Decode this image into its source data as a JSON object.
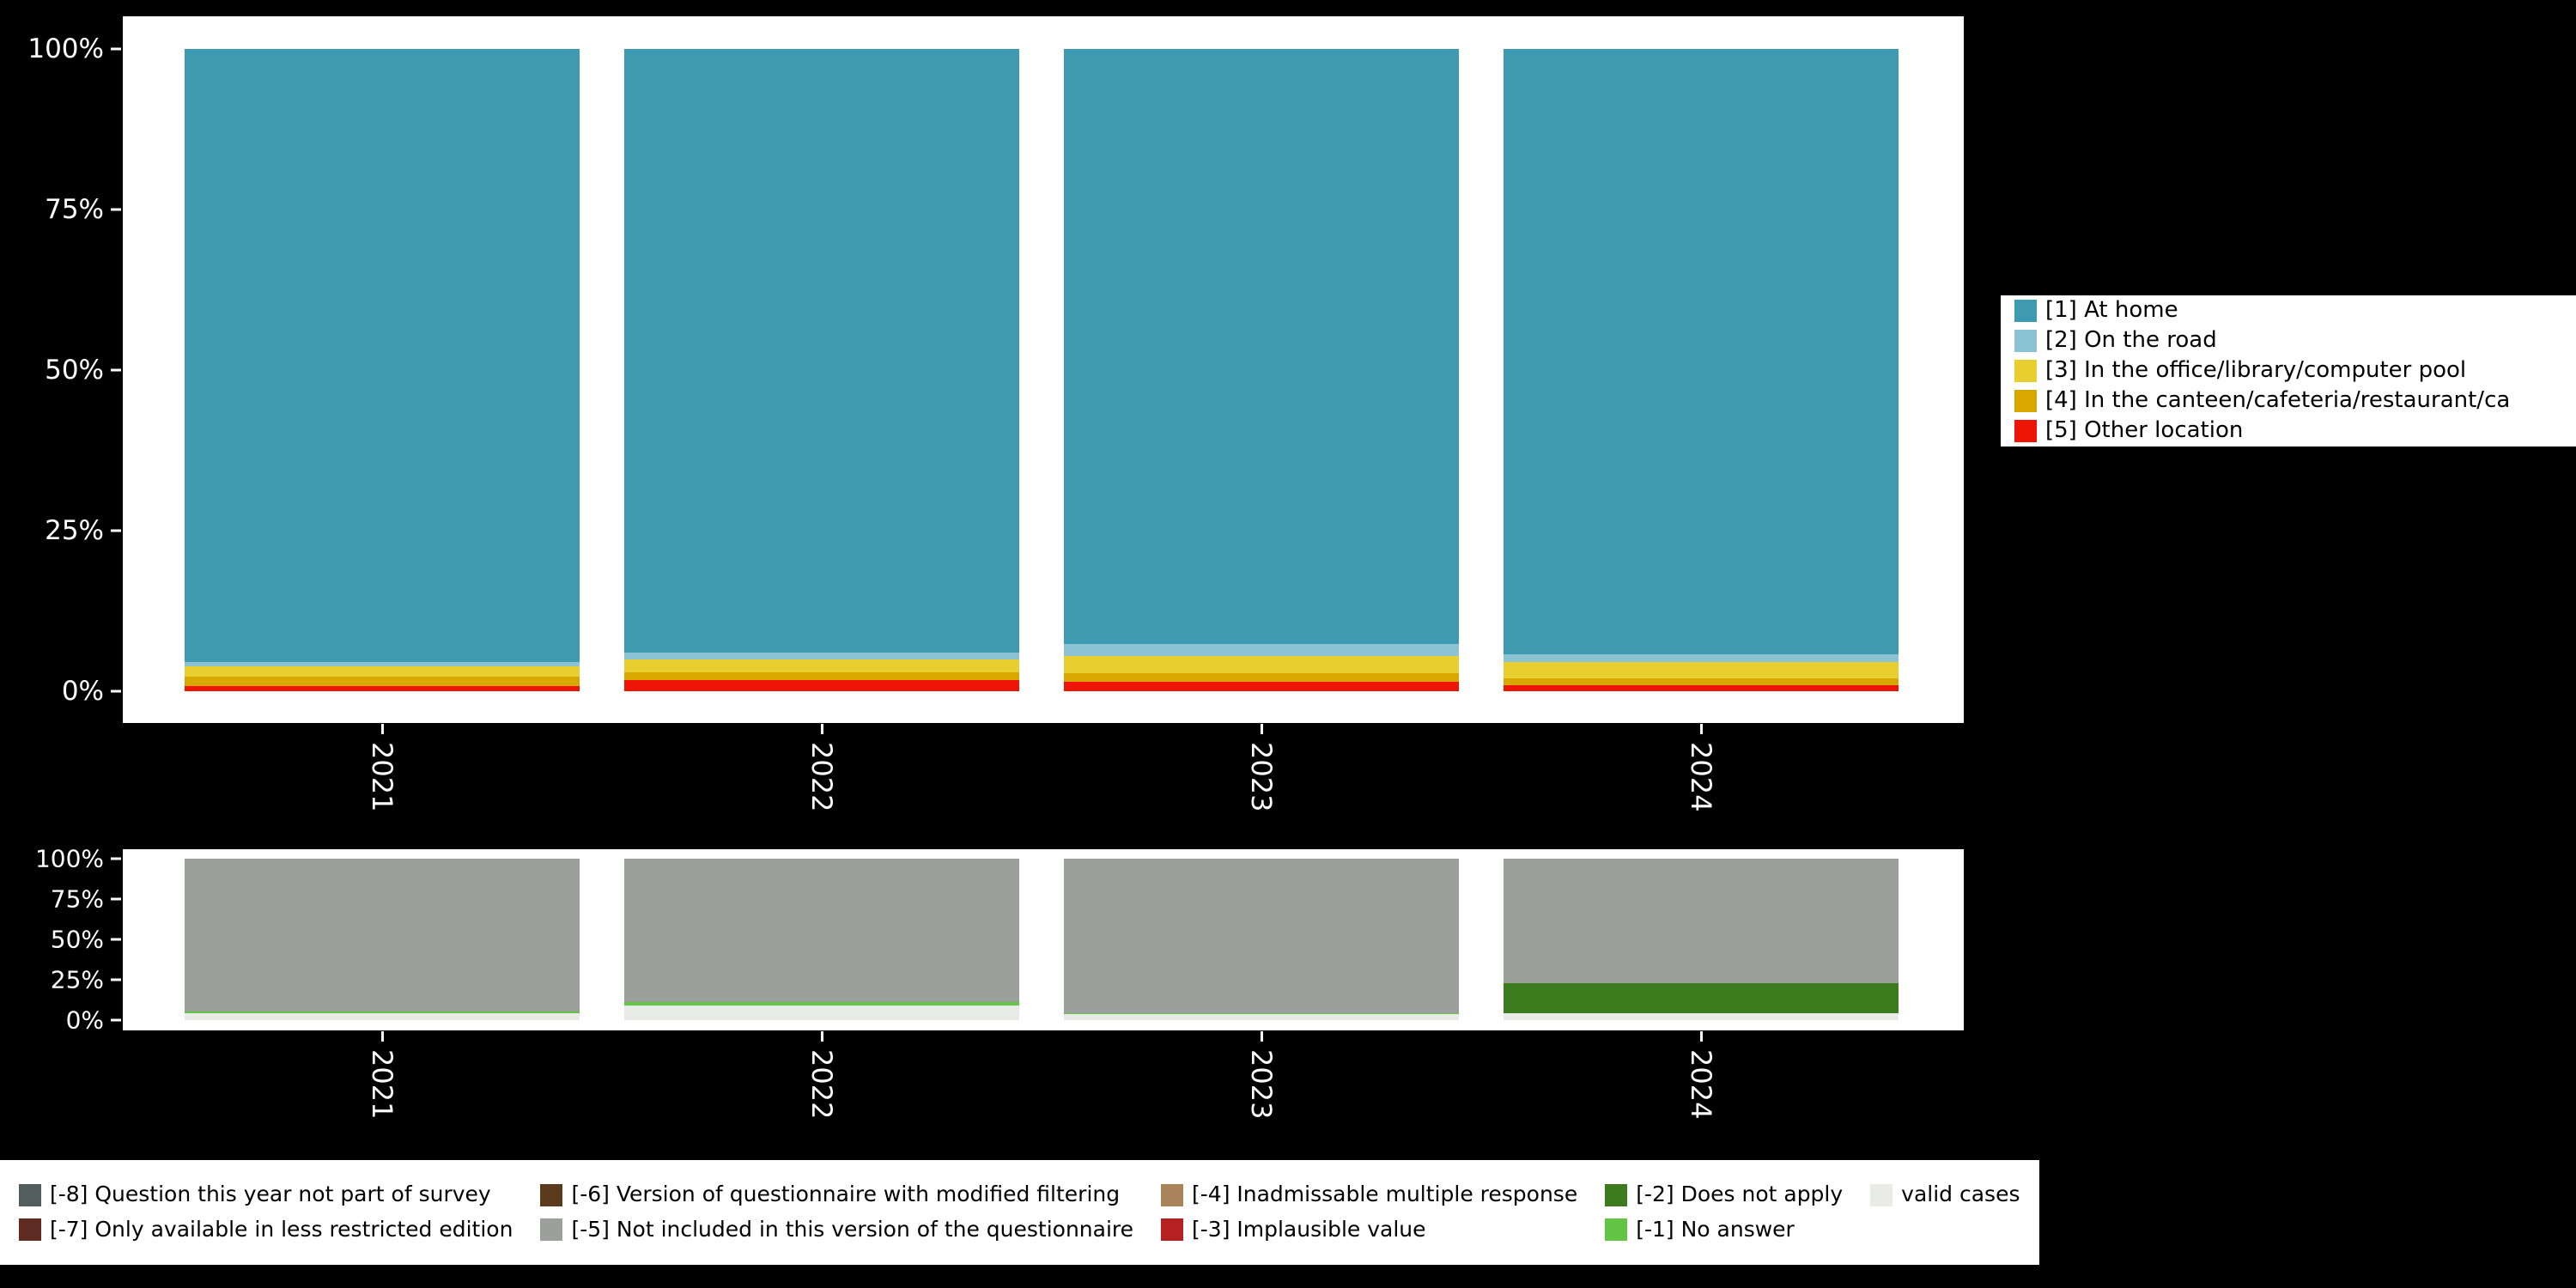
{
  "page": {
    "background_color": "#000000",
    "panel_color": "#ffffff",
    "axis_text_color": "#ffffff"
  },
  "chart_data": [
    {
      "type": "bar",
      "stacked": true,
      "title": "",
      "xlabel": "",
      "ylabel": "",
      "categories": [
        "2021",
        "2022",
        "2023",
        "2024"
      ],
      "ylim": [
        0,
        100
      ],
      "yticks": [
        {
          "value": 0,
          "label": "0%"
        },
        {
          "value": 25,
          "label": "25%"
        },
        {
          "value": 50,
          "label": "50%"
        },
        {
          "value": 75,
          "label": "75%"
        },
        {
          "value": 100,
          "label": "100%"
        }
      ],
      "grid": false,
      "legend_position": "right",
      "legend_rows": 5,
      "series": [
        {
          "name": "[1] At home",
          "color": "#3d9ab1",
          "values": [
            95.5,
            94.0,
            92.7,
            94.2
          ]
        },
        {
          "name": "[2] On the road",
          "color": "#8cc3d4",
          "values": [
            0.6,
            1.0,
            1.8,
            1.2
          ]
        },
        {
          "name": "[3] In the office/library/computer pool",
          "color": "#e9ce30",
          "values": [
            1.6,
            2.0,
            2.7,
            2.6
          ]
        },
        {
          "name": "[4] In the canteen/cafeteria/restaurant/ca",
          "color": "#d8a800",
          "values": [
            1.5,
            1.2,
            1.3,
            1.1
          ]
        },
        {
          "name": "[5] Other location",
          "color": "#ee1507",
          "values": [
            0.8,
            1.8,
            1.5,
            0.9
          ]
        }
      ]
    },
    {
      "type": "bar",
      "stacked": true,
      "title": "",
      "xlabel": "",
      "ylabel": "",
      "categories": [
        "2021",
        "2022",
        "2023",
        "2024"
      ],
      "ylim": [
        0,
        100
      ],
      "yticks": [
        {
          "value": 0,
          "label": "0%"
        },
        {
          "value": 25,
          "label": "25%"
        },
        {
          "value": 50,
          "label": "50%"
        },
        {
          "value": 75,
          "label": "75%"
        },
        {
          "value": 100,
          "label": "100%"
        }
      ],
      "grid": false,
      "legend_position": "bottom",
      "legend_rows": 2,
      "series": [
        {
          "name": "[-8] Question this year not part of survey",
          "color": "#545d5e",
          "values": [
            0,
            0,
            0,
            0
          ]
        },
        {
          "name": "[-7] Only available in less restricted edition",
          "color": "#602b22",
          "values": [
            0,
            0,
            0,
            0
          ]
        },
        {
          "name": "[-6] Version of questionnaire with modified filtering",
          "color": "#5c3a1d",
          "values": [
            0,
            0,
            0,
            0
          ]
        },
        {
          "name": "[-5] Not included in this version of the questionnaire",
          "color": "#9ba19a",
          "values": [
            94.5,
            89.0,
            96.0,
            77.0
          ]
        },
        {
          "name": "[-4] Inadmissable multiple response",
          "color": "#a9835a",
          "values": [
            0,
            0,
            0,
            0
          ]
        },
        {
          "name": "[-3] Implausible value",
          "color": "#b62020",
          "values": [
            0,
            0,
            0,
            0
          ]
        },
        {
          "name": "[-2] Does not apply",
          "color": "#3d7c1e",
          "values": [
            0,
            0,
            0,
            19.0
          ]
        },
        {
          "name": "[-1] No answer",
          "color": "#63c544",
          "values": [
            1.5,
            2.0,
            0.5,
            0
          ]
        },
        {
          "name": "valid cases",
          "color": "#e9ebe6",
          "values": [
            4.0,
            9.0,
            3.5,
            4.0
          ]
        }
      ]
    }
  ]
}
